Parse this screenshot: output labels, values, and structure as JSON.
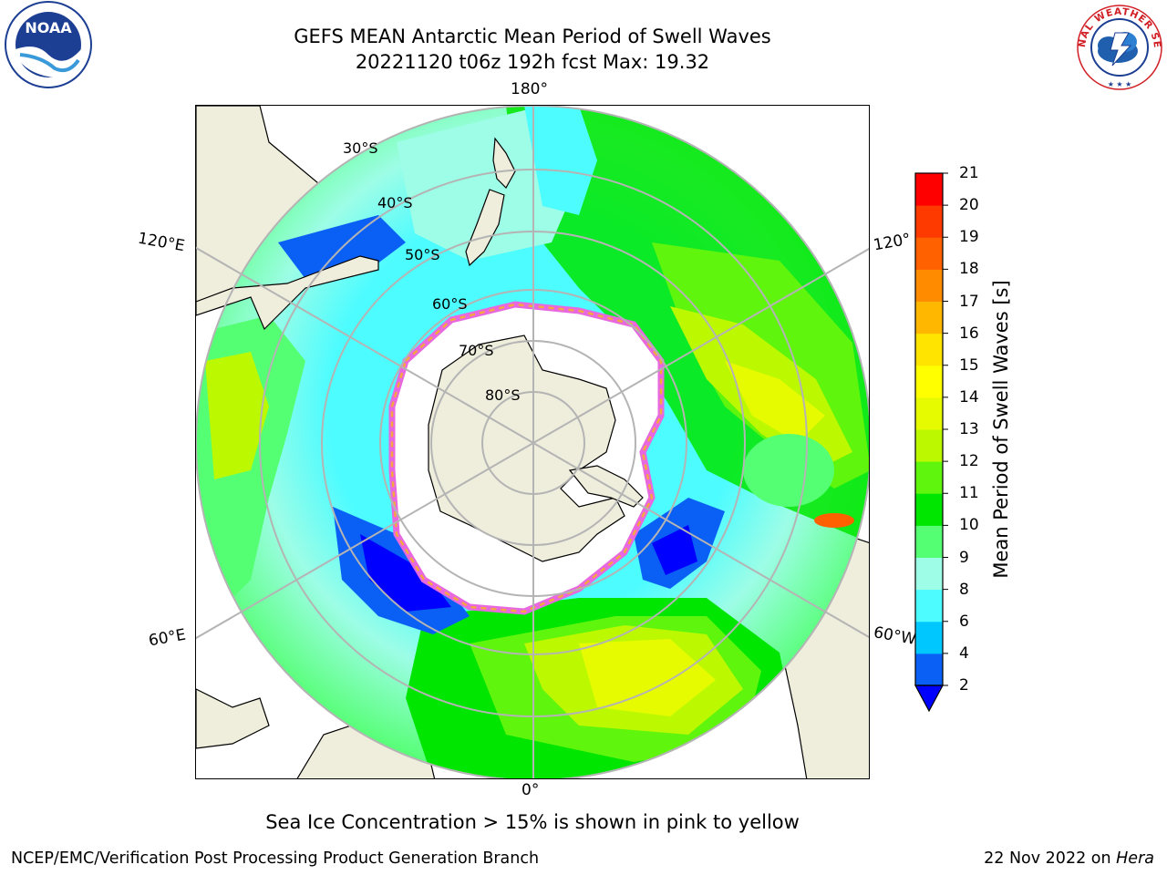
{
  "header": {
    "title_line1": "GEFS MEAN Antarctic Mean Period of Swell Waves",
    "title_line2": "20221120 t06z 192h fcst   Max: 19.32"
  },
  "logos": {
    "noaa_text": "NOAA",
    "nws_text": "NATIONAL WEATHER SERVICE"
  },
  "map": {
    "lon_labels": {
      "top": "180°",
      "bottom": "0°",
      "left_upper": "120°E",
      "left_lower": "60°E",
      "right_upper": "120°",
      "right_lower": "60°W"
    },
    "lat_labels": [
      "30°S",
      "40°S",
      "50°S",
      "60°S",
      "70°S",
      "80°S"
    ],
    "colors": {
      "land": "#efeddc",
      "sea_ice": "#ffffff",
      "ice_edge_pink": "#e868e0",
      "ice_edge_orange": "#f4a640",
      "grid": "#b4b4b4"
    }
  },
  "colorbar": {
    "label": "Mean Period of Swell Waves [s]",
    "ticks": [
      "2",
      "4",
      "6",
      "8",
      "9",
      "10",
      "11",
      "12",
      "13",
      "14",
      "15",
      "16",
      "17",
      "18",
      "19",
      "20",
      "21"
    ],
    "colors": [
      "#0a5ff5",
      "#00c8ff",
      "#4dfcff",
      "#9dfde6",
      "#55ff73",
      "#00e600",
      "#5ff50d",
      "#bcf900",
      "#e6fb00",
      "#ffff00",
      "#ffe400",
      "#ffb700",
      "#ff8c00",
      "#ff6000",
      "#ff3a00",
      "#ff0000"
    ],
    "extend_color": "#0000ff"
  },
  "notes": {
    "sea_ice": "Sea Ice Concentration > 15% is shown in pink to yellow"
  },
  "footer": {
    "left": "NCEP/EMC/Verification Post Processing Product Generation Branch",
    "right_date": "22 Nov 2022 on ",
    "right_host": "Hera"
  }
}
